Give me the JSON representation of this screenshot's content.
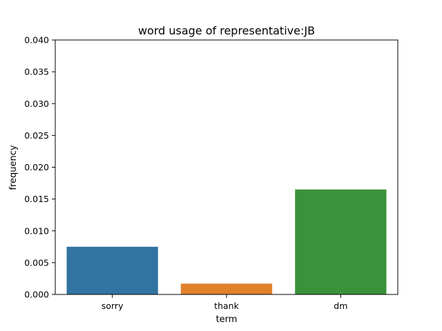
{
  "chart_data": {
    "type": "bar",
    "title": "word usage of representative:JB",
    "xlabel": "term",
    "ylabel": "frequency",
    "categories": [
      "sorry",
      "thank",
      "dm"
    ],
    "values": [
      0.0075,
      0.0017,
      0.0165
    ],
    "colors": [
      "#3274a1",
      "#e1812c",
      "#3a923a"
    ],
    "ylim": [
      0,
      0.04
    ],
    "yticks": [
      "0.000",
      "0.005",
      "0.010",
      "0.015",
      "0.020",
      "0.025",
      "0.030",
      "0.035",
      "0.040"
    ],
    "grid": false,
    "legend": "none"
  }
}
